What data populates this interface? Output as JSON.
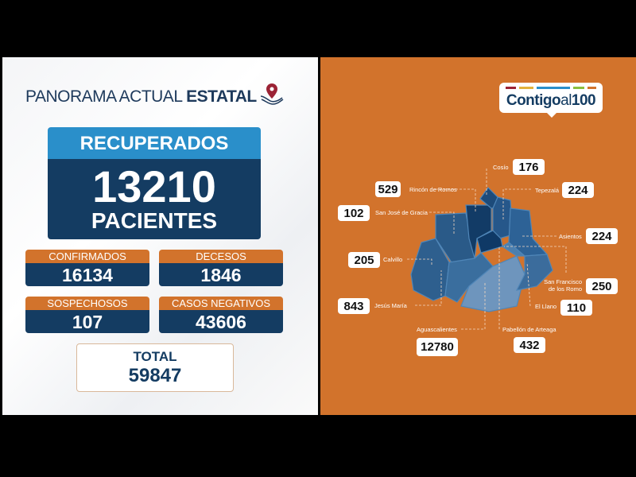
{
  "header": {
    "title_regular": "PANORAMA ACTUAL ",
    "title_bold": "ESTATAL",
    "icon": "location-pin-hand-icon"
  },
  "recuperados": {
    "label": "RECUPERADOS",
    "value": "13210",
    "unit": "PACIENTES"
  },
  "stats": [
    {
      "label": "CONFIRMADOS",
      "value": "16134"
    },
    {
      "label": "DECESOS",
      "value": "1846"
    },
    {
      "label": "SOSPECHOSOS",
      "value": "107"
    },
    {
      "label": "CASOS NEGATIVOS",
      "value": "43606"
    }
  ],
  "total": {
    "label": "TOTAL",
    "value": "59847"
  },
  "logo": {
    "text_bold": "Contigo",
    "text_light": "al",
    "text_num": "100",
    "bar_colors": [
      "#9b2335",
      "#e3b23c",
      "#2a8fca",
      "#8bbf3f",
      "#d2732c"
    ]
  },
  "colors": {
    "orange": "#d2732c",
    "navy": "#143c62",
    "blue": "#2a8fca"
  },
  "municipios": [
    {
      "name": "Cosío",
      "value": "176"
    },
    {
      "name": "Rincón de Romos",
      "value": "529"
    },
    {
      "name": "Tepezalá",
      "value": "224"
    },
    {
      "name": "San José de Gracia",
      "value": "102"
    },
    {
      "name": "Asientos",
      "value": "224"
    },
    {
      "name": "Calvillo",
      "value": "205"
    },
    {
      "name": "San Francisco de los Romo",
      "value": "250"
    },
    {
      "name": "Jesús María",
      "value": "843"
    },
    {
      "name": "El Llano",
      "value": "110"
    },
    {
      "name": "Aguascalientes",
      "value": "12780"
    },
    {
      "name": "Pabellón de Arteaga",
      "value": "432"
    }
  ]
}
